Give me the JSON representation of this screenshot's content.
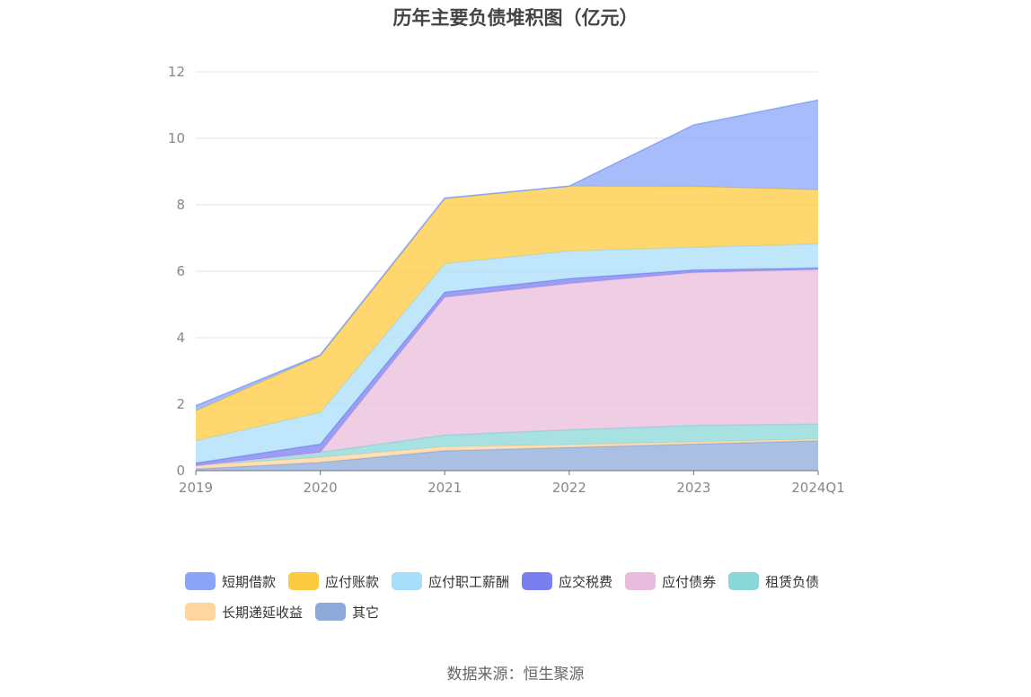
{
  "chart_data": {
    "type": "area",
    "stacked": true,
    "title": "历年主要负债堆积图（亿元）",
    "x": [
      "2019",
      "2020",
      "2021",
      "2022",
      "2023",
      "2024Q1"
    ],
    "ylim": [
      0,
      12
    ],
    "yticks": [
      0,
      2,
      4,
      6,
      8,
      10,
      12
    ],
    "grid": true,
    "legend_position": "bottom",
    "series": [
      {
        "name": "其它",
        "color": "#8eaadb",
        "values": [
          0.05,
          0.25,
          0.6,
          0.7,
          0.8,
          0.9
        ]
      },
      {
        "name": "长期递延收益",
        "color": "#ffd59e",
        "values": [
          0.1,
          0.15,
          0.12,
          0.08,
          0.06,
          0.05
        ]
      },
      {
        "name": "租赁负债",
        "color": "#8ad7d8",
        "values": [
          0.0,
          0.15,
          0.35,
          0.45,
          0.5,
          0.45
        ]
      },
      {
        "name": "应付债券",
        "color": "#e8bcdc",
        "values": [
          0.0,
          0.0,
          4.15,
          4.4,
          4.6,
          4.65
        ]
      },
      {
        "name": "应交税费",
        "color": "#7a7ff0",
        "values": [
          0.08,
          0.25,
          0.15,
          0.15,
          0.08,
          0.05
        ]
      },
      {
        "name": "应付职工薪酬",
        "color": "#a9defa",
        "values": [
          0.67,
          0.95,
          0.86,
          0.83,
          0.68,
          0.72
        ]
      },
      {
        "name": "应付账款",
        "color": "#fdcb3f",
        "values": [
          0.9,
          1.7,
          1.95,
          1.95,
          1.83,
          1.63
        ]
      },
      {
        "name": "短期借款",
        "color": "#8aa5f8",
        "values": [
          0.15,
          0.03,
          0.02,
          0.0,
          1.85,
          2.7
        ]
      }
    ]
  },
  "source": "数据来源：恒生聚源"
}
